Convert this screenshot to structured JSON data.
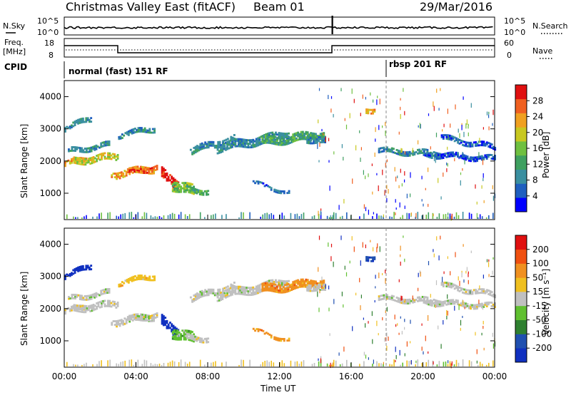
{
  "header": {
    "title": "Christmas Valley East (fitACF)",
    "beam": "Beam 01",
    "date": "29/Mar/2016"
  },
  "top_panels": {
    "nsky_label": "N.Sky",
    "nsearch_label": "N.Search",
    "counts_ticks": [
      "10^5",
      "10^0"
    ],
    "freq_label": "Freq.",
    "freq_unit": "[MHz]",
    "freq_ticks": [
      "18",
      "8"
    ],
    "nave_label": "Nave",
    "nave_ticks": [
      "60",
      "0"
    ],
    "cpid_label": "CPID",
    "cpid_modes": [
      "normal (fast) 151 RF",
      "rbsp 201 RF"
    ]
  },
  "chart_data": [
    {
      "type": "heatmap",
      "name": "power",
      "ylabel": "Slant Range [km]",
      "xlabel": "Time UT",
      "x_ticks": [
        "00:00",
        "04:00",
        "08:00",
        "12:00",
        "16:00",
        "20:00",
        "00:00"
      ],
      "y_ticks": [
        "1000",
        "2000",
        "3000",
        "4000"
      ],
      "ylim": [
        180,
        4500
      ],
      "xlim_hours": [
        0,
        24
      ],
      "colorbar_label": "Power [dB]",
      "colorbar_ticks": [
        "4",
        "8",
        "12",
        "16",
        "20",
        "24",
        "28"
      ],
      "colors": [
        "#0000ff",
        "#1f5fbf",
        "#3a8fa0",
        "#3fa060",
        "#6fc040",
        "#c8c820",
        "#f0a020",
        "#f06020",
        "#e01010"
      ]
    },
    {
      "type": "heatmap",
      "name": "velocity",
      "ylabel": "Slant Range [km]",
      "xlabel": "Time UT",
      "x_ticks": [
        "00:00",
        "04:00",
        "08:00",
        "12:00",
        "16:00",
        "20:00",
        "00:00"
      ],
      "y_ticks": [
        "1000",
        "2000",
        "3000",
        "4000"
      ],
      "ylim": [
        180,
        4500
      ],
      "xlim_hours": [
        0,
        24
      ],
      "colorbar_label": "Velocity [m s⁻¹]",
      "colorbar_ticks": [
        "200",
        "100",
        "50",
        "15",
        "-15",
        "-50",
        "-100",
        "-200"
      ],
      "colors": [
        "#1030c0",
        "#2050b0",
        "#2f8030",
        "#60c030",
        "#c0c0c0",
        "#f0c020",
        "#f09020",
        "#f05010",
        "#e01010"
      ]
    }
  ]
}
